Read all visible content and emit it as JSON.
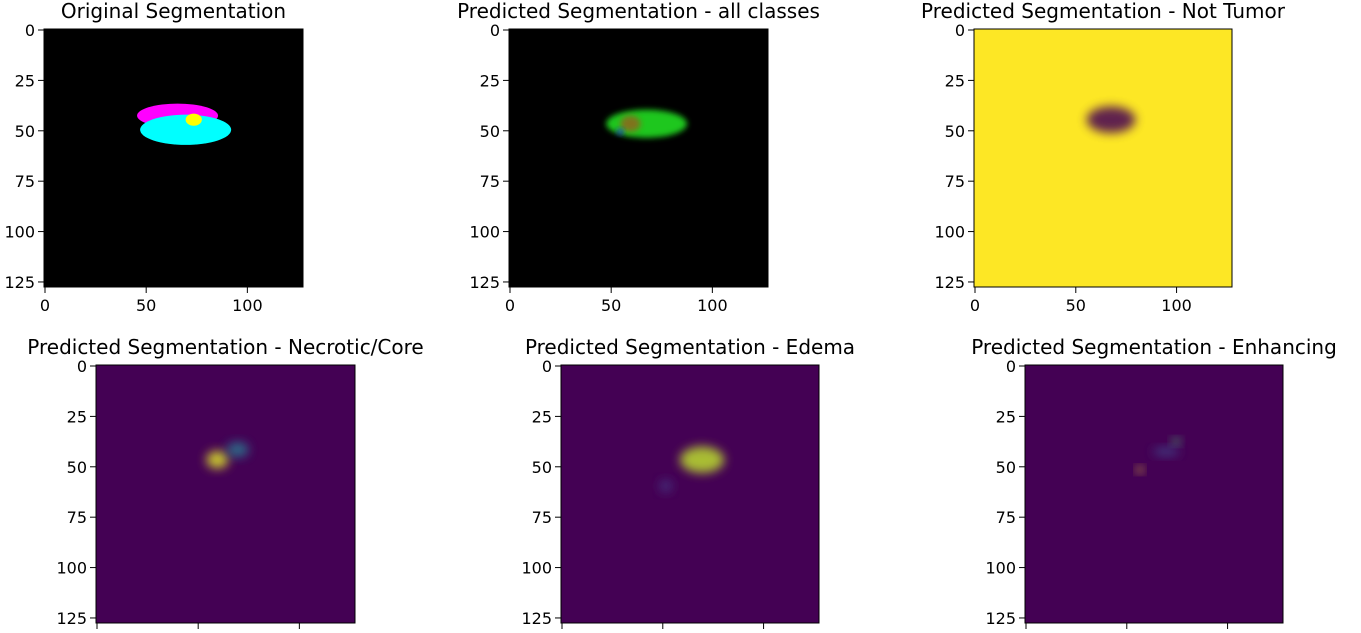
{
  "figure": {
    "background": "#ffffff",
    "palette": {
      "viridis_dark": "#440154",
      "viridis_yellow": "#fde725",
      "black": "#000000",
      "cyan": "#00ffff",
      "magenta": "#ff00ff",
      "yellow": "#ffff00",
      "green": "#22dd22",
      "blue": "#2222ff"
    }
  },
  "chart_data": [
    {
      "type": "heatmap",
      "title": "Original Segmentation",
      "xlim": [
        0,
        128
      ],
      "ylim": [
        128,
        0
      ],
      "xticks": [
        "0",
        "50",
        "100"
      ],
      "yticks": [
        "0",
        "25",
        "50",
        "75",
        "100",
        "125"
      ],
      "colormap": "rgb-label",
      "background_color": "#000000",
      "regions": [
        {
          "label": "magenta region",
          "color": "#ff00ff",
          "center": [
            66,
            43
          ],
          "extent": [
            40,
            12
          ]
        },
        {
          "label": "cyan region",
          "color": "#00ffff",
          "center": [
            70,
            50
          ],
          "extent": [
            45,
            15
          ]
        },
        {
          "label": "yellow region",
          "color": "#ffff00",
          "center": [
            74,
            45
          ],
          "extent": [
            8,
            6
          ]
        }
      ]
    },
    {
      "type": "heatmap",
      "title": "Predicted Segmentation - all classes",
      "xlim": [
        0,
        128
      ],
      "ylim": [
        128,
        0
      ],
      "xticks": [
        "0",
        "50",
        "100"
      ],
      "yticks": [
        "0",
        "25",
        "50",
        "75",
        "100",
        "125"
      ],
      "colormap": "rgb-label",
      "background_color": "#000000",
      "regions": [
        {
          "label": "green blob",
          "color": "#22dd22",
          "center": [
            68,
            47
          ],
          "extent": [
            40,
            14
          ]
        },
        {
          "label": "orange core",
          "color": "#8a6a1a",
          "center": [
            60,
            47
          ],
          "extent": [
            10,
            8
          ]
        },
        {
          "label": "blue spot",
          "color": "#2222ff",
          "center": [
            55,
            51
          ],
          "extent": [
            3,
            3
          ]
        }
      ]
    },
    {
      "type": "heatmap",
      "title": "Predicted Segmentation - Not Tumor",
      "xlim": [
        0,
        128
      ],
      "ylim": [
        128,
        0
      ],
      "xticks": [
        "0",
        "50",
        "100"
      ],
      "yticks": [
        "0",
        "25",
        "50",
        "75",
        "100",
        "125"
      ],
      "colormap": "viridis",
      "background_value": 1,
      "blobs": [
        {
          "center": [
            68,
            45
          ],
          "extent": [
            22,
            12
          ],
          "value": 0
        }
      ]
    },
    {
      "type": "heatmap",
      "title": "Predicted Segmentation - Necrotic/Core",
      "xlim": [
        0,
        128
      ],
      "ylim": [
        128,
        0
      ],
      "xticks": [
        "",
        "",
        ""
      ],
      "yticks": [
        "0",
        "25",
        "50",
        "75",
        "100",
        "125"
      ],
      "colormap": "viridis",
      "background_value": 0,
      "blobs": [
        {
          "center": [
            60,
            47
          ],
          "extent": [
            10,
            8
          ],
          "value": 0.95
        },
        {
          "center": [
            70,
            42
          ],
          "extent": [
            10,
            7
          ],
          "value": 0.4
        }
      ]
    },
    {
      "type": "heatmap",
      "title": "Predicted Segmentation - Edema",
      "xlim": [
        0,
        128
      ],
      "ylim": [
        128,
        0
      ],
      "xticks": [
        "",
        "",
        ""
      ],
      "yticks": [
        "0",
        "25",
        "50",
        "75",
        "100",
        "125"
      ],
      "colormap": "viridis",
      "background_value": 0,
      "blobs": [
        {
          "center": [
            70,
            47
          ],
          "extent": [
            20,
            12
          ],
          "value": 0.9
        },
        {
          "center": [
            52,
            60
          ],
          "extent": [
            6,
            6
          ],
          "value": 0.15
        }
      ]
    },
    {
      "type": "heatmap",
      "title": "Predicted Segmentation - Enhancing",
      "xlim": [
        0,
        128
      ],
      "ylim": [
        128,
        0
      ],
      "xticks": [
        "",
        "",
        ""
      ],
      "yticks": [
        "0",
        "25",
        "50",
        "75",
        "100",
        "125"
      ],
      "colormap": "viridis",
      "background_value": 0,
      "blobs": [
        {
          "center": [
            57,
            52
          ],
          "extent": [
            3,
            3
          ],
          "value": 1
        },
        {
          "center": [
            75,
            38
          ],
          "extent": [
            4,
            3
          ],
          "value": 0.7
        },
        {
          "center": [
            70,
            43
          ],
          "extent": [
            12,
            4
          ],
          "value": 0.2
        }
      ]
    }
  ]
}
